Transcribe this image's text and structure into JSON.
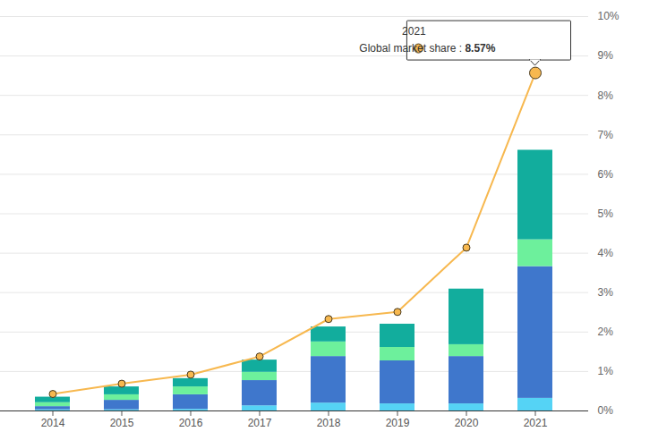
{
  "chart_data": {
    "type": "bar",
    "stacked": true,
    "categories": [
      "2014",
      "2015",
      "2016",
      "2017",
      "2018",
      "2019",
      "2020",
      "2021"
    ],
    "series": [
      {
        "type": "bar",
        "color": "#55d3f5",
        "values": [
          0.03,
          0.03,
          0.04,
          0.13,
          0.2,
          0.18,
          0.18,
          0.32
        ]
      },
      {
        "type": "bar",
        "color": "#3f77cc",
        "values": [
          0.08,
          0.24,
          0.37,
          0.64,
          1.18,
          1.09,
          1.2,
          3.34
        ]
      },
      {
        "type": "bar",
        "color": "#6df09c",
        "values": [
          0.1,
          0.14,
          0.2,
          0.21,
          0.37,
          0.34,
          0.3,
          0.68
        ]
      },
      {
        "type": "bar",
        "color": "#12ad9d",
        "values": [
          0.14,
          0.2,
          0.21,
          0.31,
          0.38,
          0.59,
          1.41,
          2.27
        ]
      },
      {
        "type": "line",
        "color": "#f7b84f",
        "marker": "circle",
        "line_style": "solid",
        "values": [
          0.43,
          0.69,
          0.92,
          1.38,
          2.33,
          2.51,
          4.14,
          8.57
        ]
      }
    ],
    "ylim": [
      0,
      10
    ],
    "yticks": [
      {
        "value": 0,
        "label": "0%"
      },
      {
        "value": 1,
        "label": "1%"
      },
      {
        "value": 2,
        "label": "2%"
      },
      {
        "value": 3,
        "label": "3%"
      },
      {
        "value": 4,
        "label": "4%"
      },
      {
        "value": 5,
        "label": "5%"
      },
      {
        "value": 6,
        "label": "6%"
      },
      {
        "value": 7,
        "label": "7%"
      },
      {
        "value": 8,
        "label": "8%"
      },
      {
        "value": 9,
        "label": "9%"
      },
      {
        "value": 10,
        "label": "10%"
      }
    ],
    "grid": true,
    "annotations": [
      {
        "x": "2021",
        "title": "2021",
        "label": "Global market share :",
        "value_label": "8.57%"
      }
    ]
  }
}
